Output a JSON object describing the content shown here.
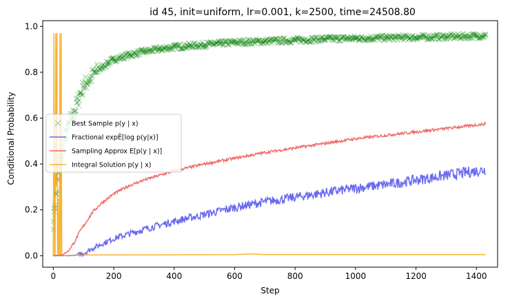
{
  "chart_data": {
    "type": "line",
    "title": "id 45, init=uniform, lr=0.001, k=2500, time=24508.80",
    "xlabel": "Step",
    "ylabel": "Conditional Probability",
    "xlim": [
      -35,
      1470
    ],
    "ylim": [
      -0.05,
      1.025
    ],
    "xticks": [
      0,
      200,
      400,
      600,
      800,
      1000,
      1200,
      1400
    ],
    "yticks": [
      0.0,
      0.2,
      0.4,
      0.6,
      0.8,
      1.0
    ],
    "xtick_labels": [
      "0",
      "200",
      "400",
      "600",
      "800",
      "1000",
      "1200",
      "1400"
    ],
    "ytick_labels": [
      "0.0",
      "0.2",
      "0.4",
      "0.6",
      "0.8",
      "1.0"
    ],
    "grid": false,
    "legend_position": "center-left",
    "series": [
      {
        "name": "Best Sample p(y | x)",
        "kind": "scatter",
        "color": "#008000",
        "x": [
          0,
          5,
          10,
          15,
          20,
          25,
          30,
          40,
          50,
          60,
          70,
          80,
          90,
          100,
          120,
          140,
          160,
          180,
          200,
          250,
          300,
          350,
          400,
          450,
          500,
          550,
          600,
          700,
          800,
          900,
          1000,
          1100,
          1200,
          1300,
          1400,
          1430
        ],
        "y": [
          0.15,
          0.22,
          0.27,
          0.33,
          0.38,
          0.42,
          0.46,
          0.52,
          0.56,
          0.6,
          0.63,
          0.67,
          0.71,
          0.74,
          0.77,
          0.8,
          0.82,
          0.84,
          0.855,
          0.875,
          0.89,
          0.9,
          0.91,
          0.915,
          0.92,
          0.925,
          0.93,
          0.935,
          0.94,
          0.945,
          0.948,
          0.95,
          0.952,
          0.955,
          0.958,
          0.96
        ]
      },
      {
        "name": "Fractional exp E[log p(y|x)]",
        "kind": "line",
        "color": "#4444ee",
        "x": [
          0,
          50,
          80,
          100,
          120,
          150,
          200,
          300,
          400,
          500,
          600,
          700,
          800,
          900,
          1000,
          1100,
          1200,
          1300,
          1400,
          1430
        ],
        "y": [
          0.0,
          0.0,
          0.003,
          0.01,
          0.025,
          0.045,
          0.075,
          0.115,
          0.15,
          0.18,
          0.21,
          0.235,
          0.255,
          0.275,
          0.295,
          0.31,
          0.33,
          0.35,
          0.37,
          0.375
        ]
      },
      {
        "name": "Sampling Approx E[p(y | x)]",
        "kind": "line",
        "color": "#ee4444",
        "x": [
          0,
          30,
          50,
          70,
          90,
          110,
          130,
          160,
          200,
          250,
          300,
          400,
          500,
          600,
          700,
          800,
          900,
          1000,
          1100,
          1200,
          1300,
          1400,
          1430
        ],
        "y": [
          0.0,
          0.005,
          0.02,
          0.06,
          0.11,
          0.15,
          0.19,
          0.23,
          0.27,
          0.305,
          0.33,
          0.37,
          0.4,
          0.425,
          0.45,
          0.47,
          0.49,
          0.51,
          0.525,
          0.54,
          0.555,
          0.57,
          0.575
        ]
      },
      {
        "name": "Integral Solution p(y | x)",
        "kind": "line",
        "color": "#f5a000",
        "x": [
          0,
          2,
          4,
          6,
          8,
          10,
          12,
          14,
          16,
          18,
          20,
          22,
          24,
          26,
          28,
          30,
          40,
          100,
          400,
          600,
          650,
          700,
          1000,
          1430
        ],
        "y": [
          0.0,
          0.97,
          0.0,
          0.0,
          0.97,
          0.3,
          0.97,
          0.0,
          0.25,
          0.0,
          0.0,
          0.97,
          0.0,
          0.97,
          0.0,
          0.0,
          0.0,
          0.003,
          0.004,
          0.005,
          0.008,
          0.005,
          0.005,
          0.005
        ]
      }
    ]
  },
  "legend": {
    "items": [
      {
        "marker": "cross",
        "color": "#008000",
        "label": "Best Sample p(y | x)"
      },
      {
        "marker": "line",
        "color": "#4444ee",
        "label": "Fractional expĒ[log p(y|x)]"
      },
      {
        "marker": "line",
        "color": "#ee4444",
        "label": "Sampling Approx E[p(y | x)]"
      },
      {
        "marker": "line",
        "color": "#f5a000",
        "label": "Integral Solution p(y | x)"
      }
    ]
  }
}
